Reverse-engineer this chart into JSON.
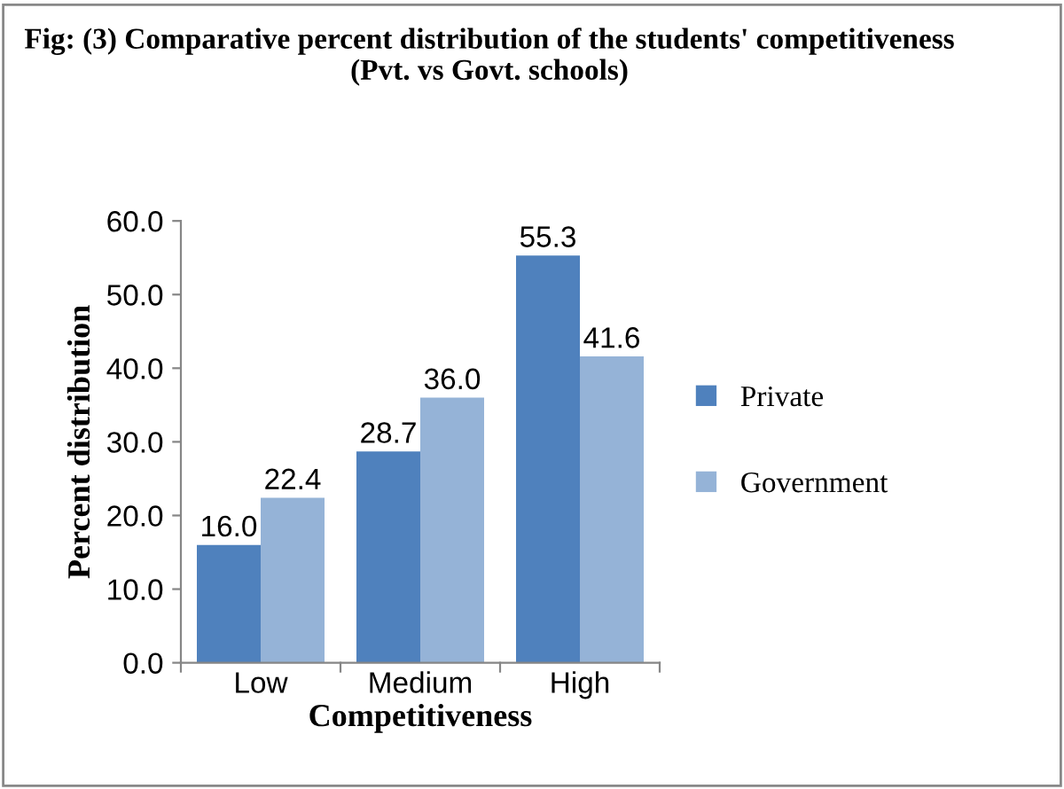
{
  "chart_data": {
    "type": "bar",
    "title": "Fig: (3) Comparative percent distribution of the students' competitiveness (Pvt. vs Govt. schools)",
    "xlabel": "Competitiveness",
    "ylabel": "Percent distribution",
    "categories": [
      "Low",
      "Medium",
      "High"
    ],
    "series": [
      {
        "name": "Private",
        "color": "#4f81bd",
        "values": [
          16.0,
          28.7,
          55.3
        ],
        "value_labels": [
          "16.0",
          "28.7",
          "55.3"
        ]
      },
      {
        "name": "Government",
        "color": "#95b3d7",
        "values": [
          22.4,
          36.0,
          41.6
        ],
        "value_labels": [
          "22.4",
          "36.0",
          "41.6"
        ]
      }
    ],
    "ylim": [
      0,
      60
    ],
    "yticks": [
      {
        "value": 0,
        "label": "0.0"
      },
      {
        "value": 10,
        "label": "10.0"
      },
      {
        "value": 20,
        "label": "20.0"
      },
      {
        "value": 30,
        "label": "30.0"
      },
      {
        "value": 40,
        "label": "40.0"
      },
      {
        "value": 50,
        "label": "50.0"
      },
      {
        "value": 60,
        "label": "60.0"
      }
    ],
    "grid": false,
    "legend": "right"
  }
}
